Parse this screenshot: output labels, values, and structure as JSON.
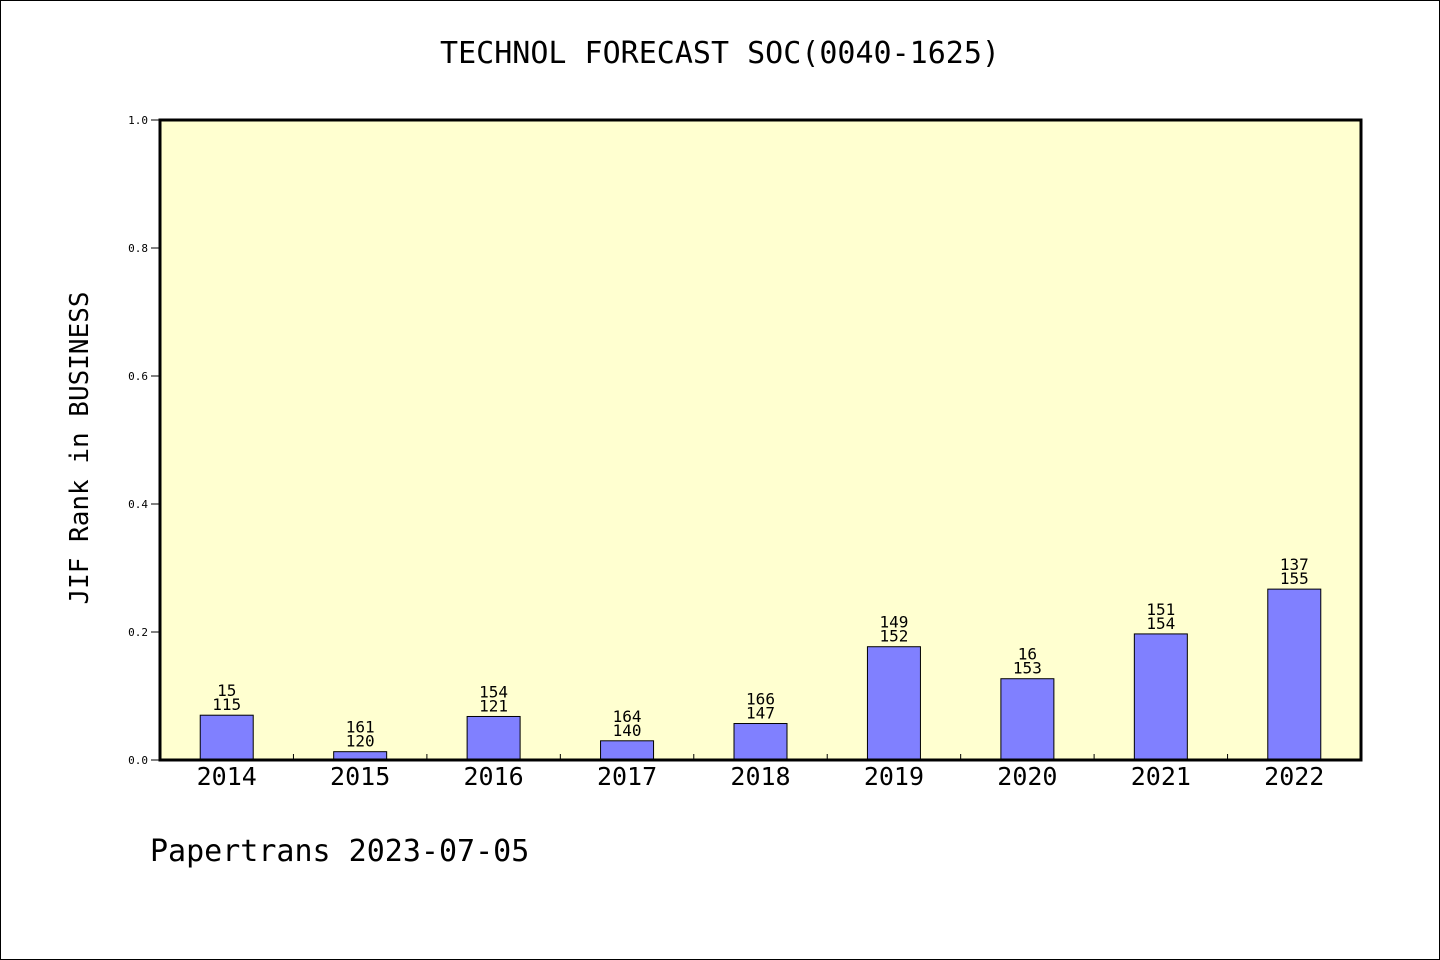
{
  "chart_data": {
    "type": "bar",
    "title": "TECHNOL FORECAST SOC(0040-1625)",
    "xlabel": "",
    "ylabel": "JIF Rank in BUSINESS",
    "ylim": [
      0,
      1.0
    ],
    "yticks": [
      "0.0",
      "0.2",
      "0.4",
      "0.6",
      "0.8",
      "1.0"
    ],
    "categories": [
      "2014",
      "2015",
      "2016",
      "2017",
      "2018",
      "2019",
      "2020",
      "2021",
      "2022"
    ],
    "values": [
      0.07,
      0.013,
      0.068,
      0.03,
      0.057,
      0.177,
      0.127,
      0.197,
      0.267
    ],
    "labels_top": [
      "15",
      "161",
      "154",
      "164",
      "166",
      "149",
      "16",
      "151",
      "137"
    ],
    "labels_bottom": [
      "115",
      "120",
      "121",
      "140",
      "147",
      "152",
      "153",
      "154",
      "155"
    ],
    "grid": false,
    "colors": {
      "bar": "#8080ff",
      "plot_background": "#ffffd0",
      "axis": "#000000"
    }
  },
  "footer": {
    "text": "Papertrans 2023-07-05"
  }
}
